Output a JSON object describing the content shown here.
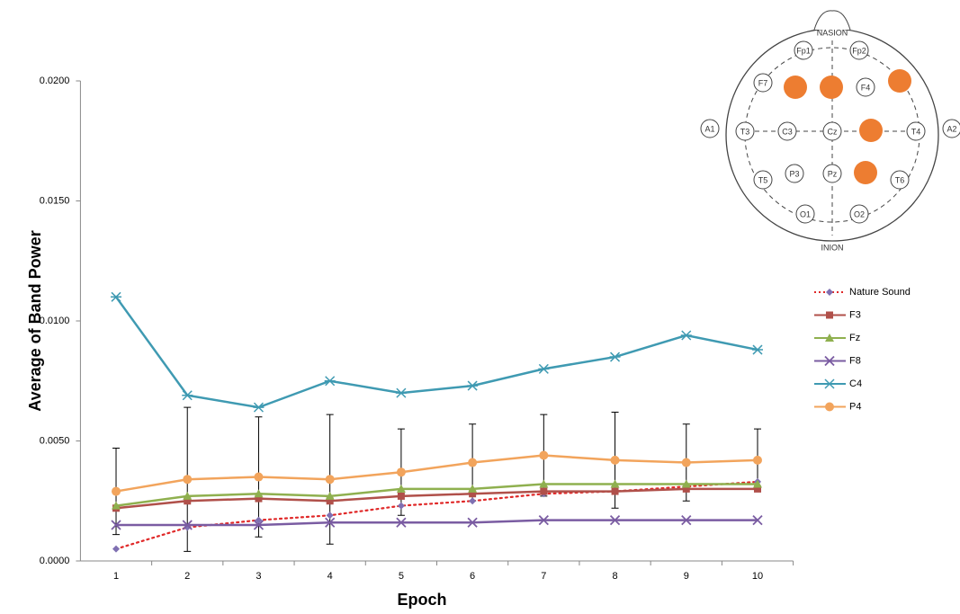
{
  "chart_data": {
    "type": "line",
    "y_label": "Average of Band Power",
    "x_label": "Epoch",
    "categories": [
      "1",
      "2",
      "3",
      "4",
      "5",
      "6",
      "7",
      "8",
      "9",
      "10"
    ],
    "ylim": [
      0,
      0.02
    ],
    "yticks": [
      {
        "value": 0,
        "label": "0.0000"
      },
      {
        "value": 0.005,
        "label": "0.0050"
      },
      {
        "value": 0.01,
        "label": "0.0100"
      },
      {
        "value": 0.015,
        "label": "0.0150"
      },
      {
        "value": 0.02,
        "label": "0.0200"
      }
    ],
    "series": [
      {
        "name": "Nature Sound",
        "color": "#e02828",
        "marker_color": "#7f70b2",
        "marker": "diamond",
        "dashed": true,
        "values": [
          0.0005,
          0.0014,
          0.0017,
          0.0019,
          0.0023,
          0.0025,
          0.0028,
          0.0029,
          0.0031,
          0.0033
        ]
      },
      {
        "name": "F3",
        "color": "#b0504a",
        "marker": "square",
        "values": [
          0.0022,
          0.0025,
          0.0026,
          0.0025,
          0.0027,
          0.0028,
          0.0029,
          0.0029,
          0.003,
          0.003
        ]
      },
      {
        "name": "Fz",
        "color": "#8fb04f",
        "marker": "triangle",
        "values": [
          0.0023,
          0.0027,
          0.0028,
          0.0027,
          0.003,
          0.003,
          0.0032,
          0.0032,
          0.0032,
          0.0032
        ]
      },
      {
        "name": "F8",
        "color": "#7a5ca2",
        "marker": "x",
        "values": [
          0.0015,
          0.0015,
          0.0015,
          0.0016,
          0.0016,
          0.0016,
          0.0017,
          0.0017,
          0.0017,
          0.0017
        ]
      },
      {
        "name": "C4",
        "color": "#3f9ab2",
        "marker": "star",
        "values": [
          0.011,
          0.0069,
          0.0064,
          0.0075,
          0.007,
          0.0073,
          0.008,
          0.0085,
          0.0094,
          0.0088
        ]
      },
      {
        "name": "P4",
        "color": "#f2a45c",
        "marker": "circle",
        "values": [
          0.0029,
          0.0034,
          0.0035,
          0.0034,
          0.0037,
          0.0041,
          0.0044,
          0.0042,
          0.0041,
          0.0042
        ],
        "errors": [
          0.0018,
          0.003,
          0.0025,
          0.0027,
          0.0018,
          0.0016,
          0.0017,
          0.002,
          0.0016,
          0.0013
        ]
      }
    ]
  },
  "diagram": {
    "nasion": "NASION",
    "inion": "INION",
    "electrodes": [
      "Fp1",
      "Fp2",
      "F7",
      "F4",
      "A1",
      "T3",
      "C3",
      "Cz",
      "T4",
      "A2",
      "T5",
      "P3",
      "Pz",
      "T6",
      "O1",
      "O2"
    ]
  }
}
